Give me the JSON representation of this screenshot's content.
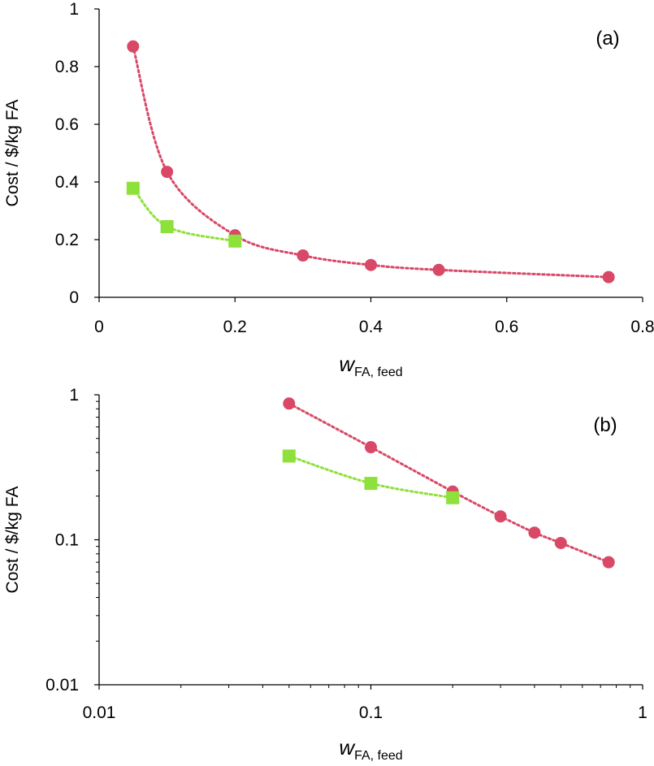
{
  "chart_data": [
    {
      "type": "scatter",
      "panel_label": "(a)",
      "xscale": "linear",
      "yscale": "linear",
      "xlim": [
        0,
        0.8
      ],
      "ylim": [
        0,
        1
      ],
      "xticks": [
        0,
        0.2,
        0.4,
        0.6,
        0.8
      ],
      "xtick_labels": [
        "0",
        "0.2",
        "0.4",
        "0.6",
        "0.8"
      ],
      "yticks": [
        0,
        0.2,
        0.4,
        0.6,
        0.8,
        1
      ],
      "ytick_labels": [
        "0",
        "0.2",
        "0.4",
        "0.6",
        "0.8",
        "1"
      ],
      "xlabel": {
        "main": "w",
        "sub": "FA, feed"
      },
      "ylabel": "Cost / $/kg FA",
      "series": [
        {
          "name": "series-circle",
          "marker": "circle",
          "color": "#d94866",
          "x": [
            0.05,
            0.1,
            0.2,
            0.3,
            0.4,
            0.5,
            0.75
          ],
          "y": [
            0.87,
            0.435,
            0.215,
            0.145,
            0.112,
            0.095,
            0.07
          ]
        },
        {
          "name": "series-square",
          "marker": "square",
          "color": "#8ee03a",
          "x": [
            0.05,
            0.1,
            0.2
          ],
          "y": [
            0.378,
            0.245,
            0.195
          ]
        }
      ]
    },
    {
      "type": "scatter",
      "panel_label": "(b)",
      "xscale": "log",
      "yscale": "log",
      "xlim": [
        0.01,
        1
      ],
      "ylim": [
        0.01,
        1
      ],
      "xticks": [
        0.01,
        0.1,
        1
      ],
      "xtick_labels": [
        "0.01",
        "0.1",
        "1"
      ],
      "yticks": [
        0.01,
        0.1,
        1
      ],
      "ytick_labels": [
        "0.01",
        "0.1",
        "1"
      ],
      "xlabel": {
        "main": "w",
        "sub": "FA, feed"
      },
      "ylabel": "Cost / $/kg FA",
      "series": [
        {
          "name": "series-circle",
          "marker": "circle",
          "color": "#d94866",
          "x": [
            0.05,
            0.1,
            0.2,
            0.3,
            0.4,
            0.5,
            0.75
          ],
          "y": [
            0.87,
            0.435,
            0.215,
            0.145,
            0.112,
            0.095,
            0.07
          ]
        },
        {
          "name": "series-square",
          "marker": "square",
          "color": "#8ee03a",
          "x": [
            0.05,
            0.1,
            0.2
          ],
          "y": [
            0.378,
            0.245,
            0.195
          ]
        }
      ]
    }
  ]
}
